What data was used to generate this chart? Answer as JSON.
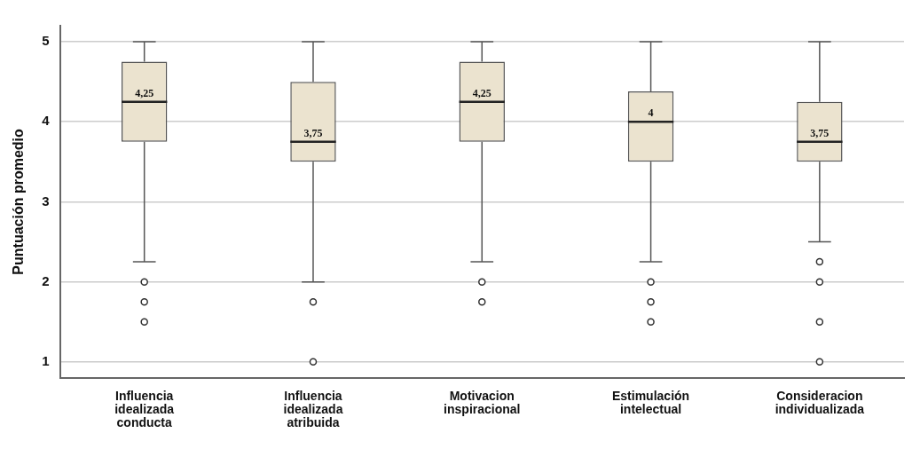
{
  "chart_data": {
    "type": "box",
    "ylabel": "Puntuación promedio",
    "categories": [
      "Influencia idealizada conducta",
      "Influencia idealizada atribuida",
      "Motivacion inspiracional",
      "Estimulación intelectual",
      "Consideracion individualizada"
    ],
    "series": [
      {
        "color": "#ebe3cf",
        "boxes": [
          {
            "low": 2.25,
            "q1": 3.75,
            "median": 4.25,
            "q3": 4.75,
            "high": 5,
            "outliers": [
              2,
              1.75,
              1.5
            ]
          },
          {
            "low": 2,
            "q1": 3.5,
            "median": 3.75,
            "q3": 4.5,
            "high": 5,
            "outliers": [
              1.75,
              1
            ]
          },
          {
            "low": 2.25,
            "q1": 3.75,
            "median": 4.25,
            "q3": 4.75,
            "high": 5,
            "outliers": [
              2,
              1.75
            ]
          },
          {
            "low": 2.25,
            "q1": 3.5,
            "median": 4,
            "q3": 4.38,
            "high": 5,
            "outliers": [
              2,
              1.75,
              1.5
            ]
          },
          {
            "low": 2.5,
            "q1": 3.5,
            "median": 3.75,
            "q3": 4.25,
            "high": 5,
            "outliers": [
              2.25,
              2,
              1.5,
              1
            ]
          }
        ],
        "value_labels": [
          "4,25",
          "3,75",
          "4,25",
          "4",
          "3,75"
        ]
      }
    ],
    "ylim": [
      0.8,
      5.2
    ],
    "yticks": [
      1,
      2,
      3,
      4,
      5
    ],
    "grid": "y",
    "legend": false
  }
}
